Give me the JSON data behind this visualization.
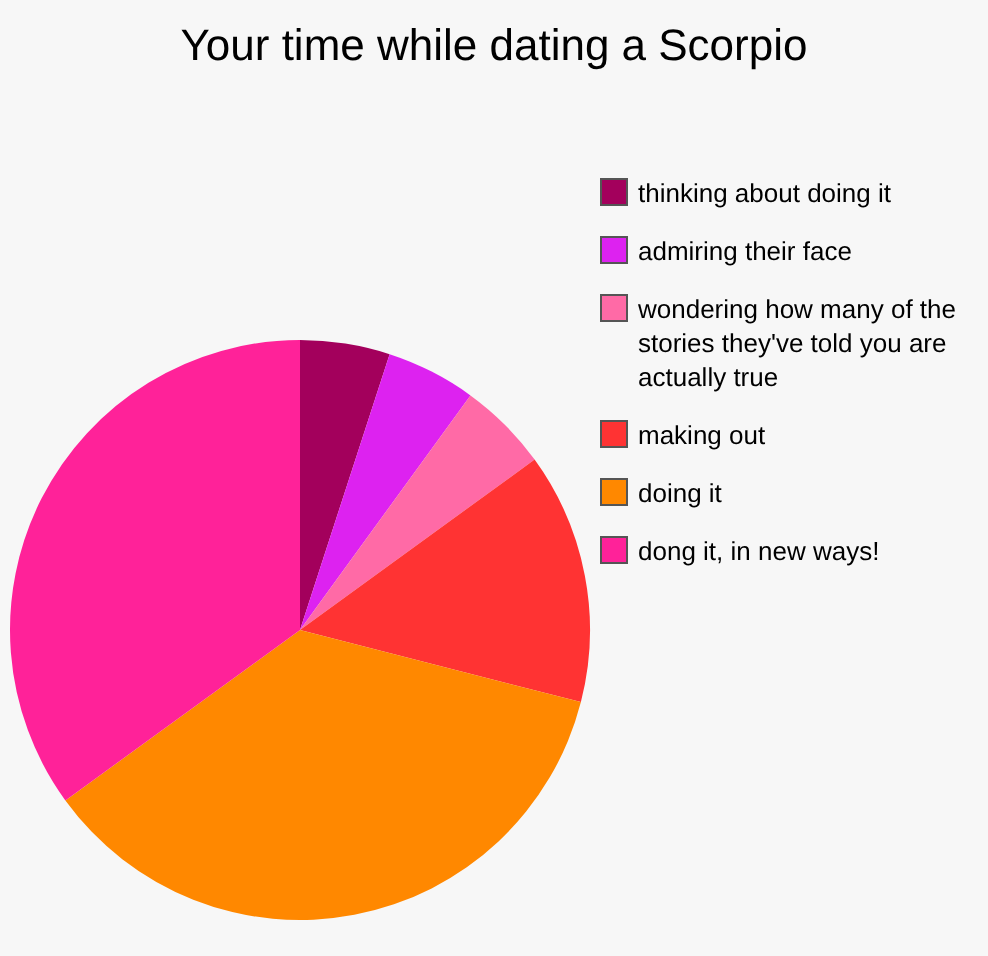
{
  "chart_data": {
    "type": "pie",
    "title": "Your time while dating a Scorpio",
    "categories": [
      "thinking about doing it",
      "admiring their face",
      "wondering how many of the stories they've told you are actually true",
      "making out",
      "doing it",
      "dong it, in new ways!"
    ],
    "values": [
      5,
      5,
      5,
      14,
      36,
      35
    ],
    "colors": [
      "#a3005c",
      "#dd22f0",
      "#ff6aa6",
      "#ff3333",
      "#ff8800",
      "#ff2299"
    ],
    "legend": "right"
  }
}
